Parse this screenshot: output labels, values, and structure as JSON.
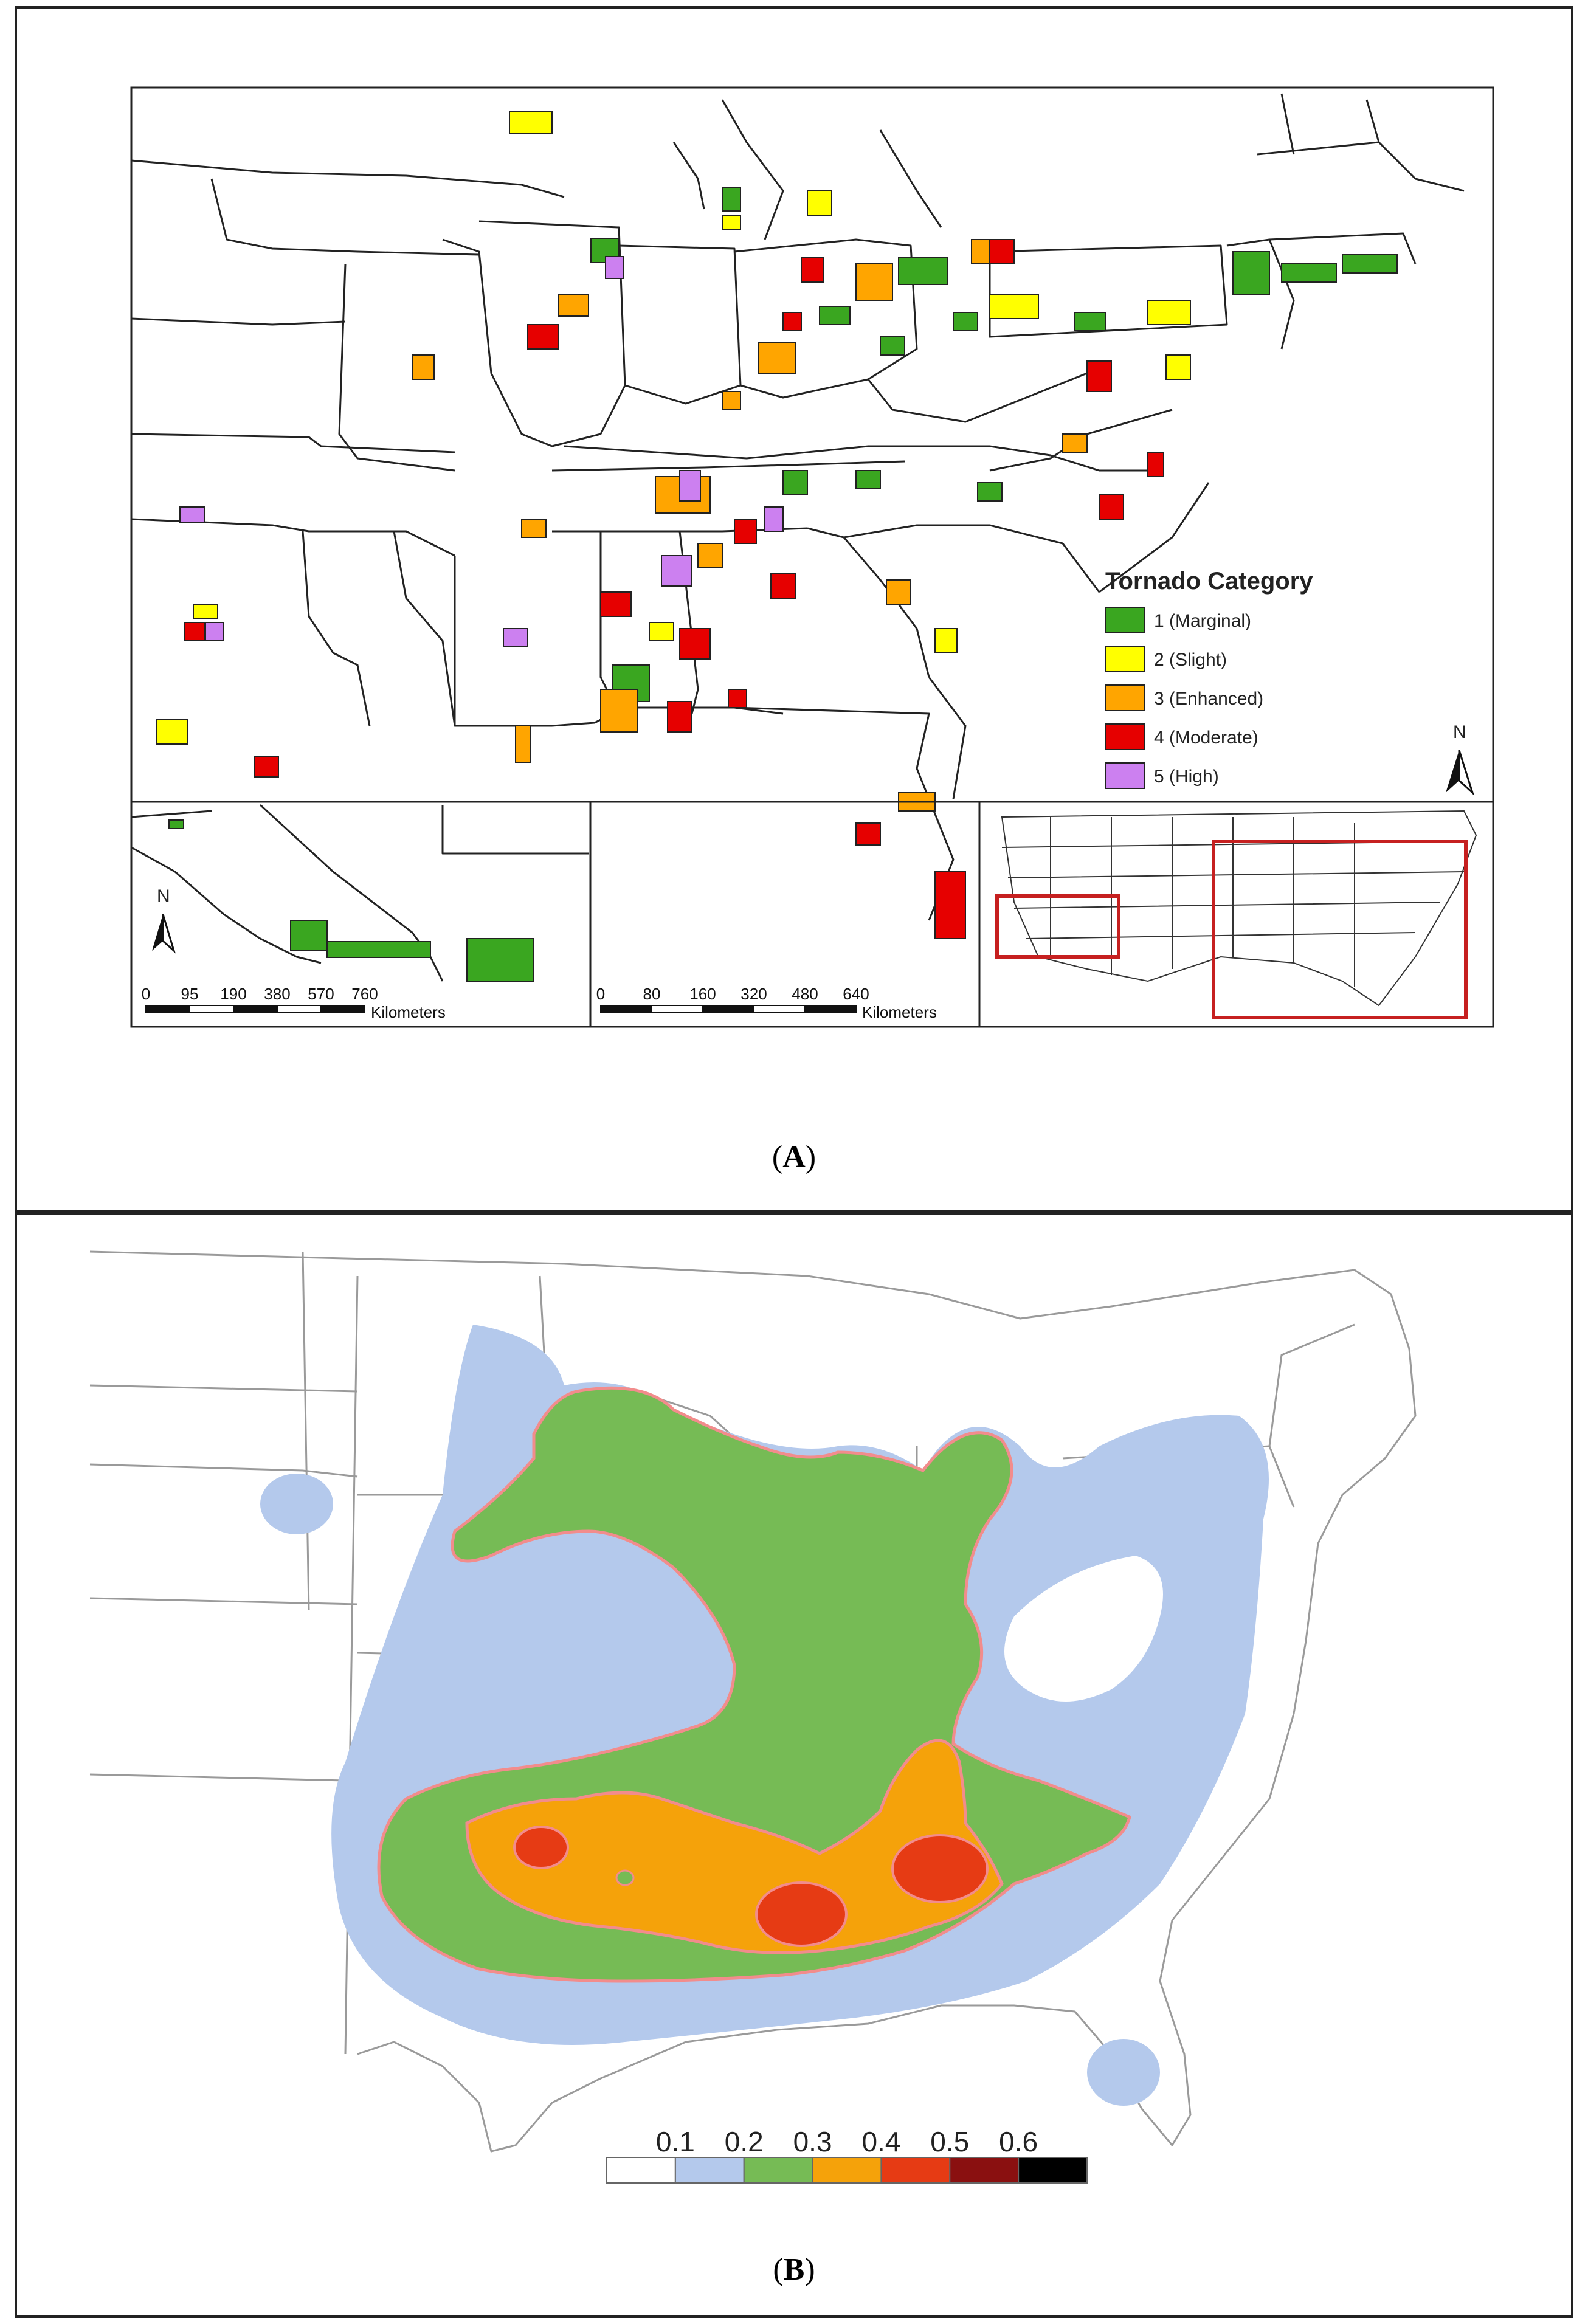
{
  "panel_a": {
    "caption_open": "(",
    "caption_letter": "A",
    "caption_close": ")",
    "legend": {
      "title": "Tornado Category",
      "items": [
        {
          "label": "1 (Marginal)",
          "color": "#3aa620"
        },
        {
          "label": "2 (Slight)",
          "color": "#ffff00"
        },
        {
          "label": "3 (Enhanced)",
          "color": "#ffa500"
        },
        {
          "label": "4 (Moderate)",
          "color": "#e60000"
        },
        {
          "label": "5 (High)",
          "color": "#cc80f0"
        }
      ]
    },
    "north_label": "N",
    "scale_west": {
      "ticks": [
        "0",
        "95",
        "190",
        "380",
        "570",
        "760"
      ],
      "unit": "Kilometers"
    },
    "scale_east": {
      "ticks": [
        "0",
        "80",
        "160",
        "320",
        "480",
        "640"
      ],
      "unit": "Kilometers"
    }
  },
  "panel_b": {
    "caption_open": "(",
    "caption_letter": "B",
    "caption_close": ")",
    "colorbar": {
      "labels": [
        "0.1",
        "0.2",
        "0.3",
        "0.4",
        "0.5",
        "0.6"
      ],
      "colors": [
        "#ffffff",
        "#b4c9ec",
        "#76bb55",
        "#f5a20a",
        "#e63b14",
        "#8a1010",
        "#000000"
      ]
    },
    "contour_colors": {
      "level_0_2": "#b4c9ec",
      "level_0_3": "#76bb55",
      "level_0_4": "#f5a20a",
      "level_0_5": "#e63b14"
    }
  }
}
